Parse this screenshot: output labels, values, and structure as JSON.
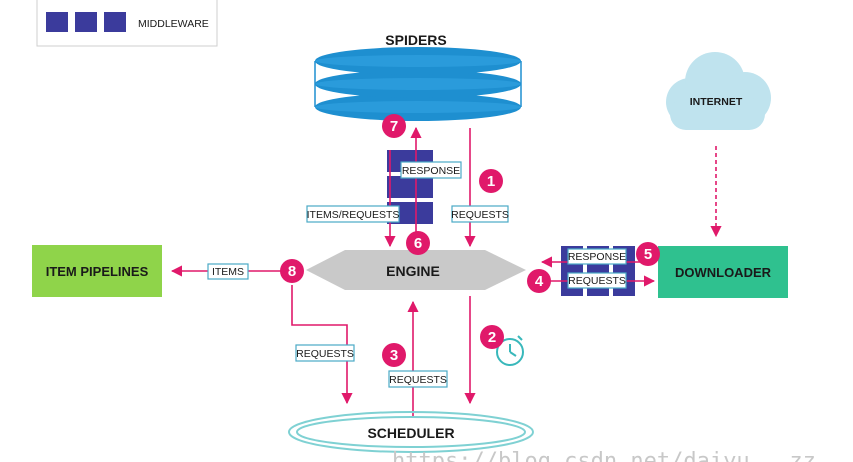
{
  "legend": {
    "label": "MIDDLEWARE"
  },
  "nodes": {
    "spiders": "SPIDERS",
    "internet": "INTERNET",
    "engine": "ENGINE",
    "item_pipelines": "ITEM PIPELINES",
    "downloader": "DOWNLOADER",
    "scheduler": "SCHEDULER"
  },
  "labels": {
    "response_spider": "RESPONSE",
    "items_requests": "ITEMS/REQUESTS",
    "requests_spider": "REQUESTS",
    "items": "ITEMS",
    "response_dl": "RESPONSE",
    "requests_dl": "REQUESTS",
    "requests_sched_left": "REQUESTS",
    "requests_sched_mid": "REQUESTS"
  },
  "steps": [
    "1",
    "2",
    "3",
    "4",
    "5",
    "6",
    "7",
    "8"
  ],
  "watermark": "https://blog.csdn.net/daiyu...zz",
  "colors": {
    "middleware": "#3b3b9c",
    "step": "#e0196a",
    "arrow": "#e0196a",
    "spiders": "#1e8fd0",
    "engine": "#c9c9c9",
    "item_pipelines": "#8fd44a",
    "downloader": "#2fc18f",
    "internet": "#bfe3ee",
    "scheduler": "#7fd1d3",
    "label_border": "#4aa9c6"
  }
}
